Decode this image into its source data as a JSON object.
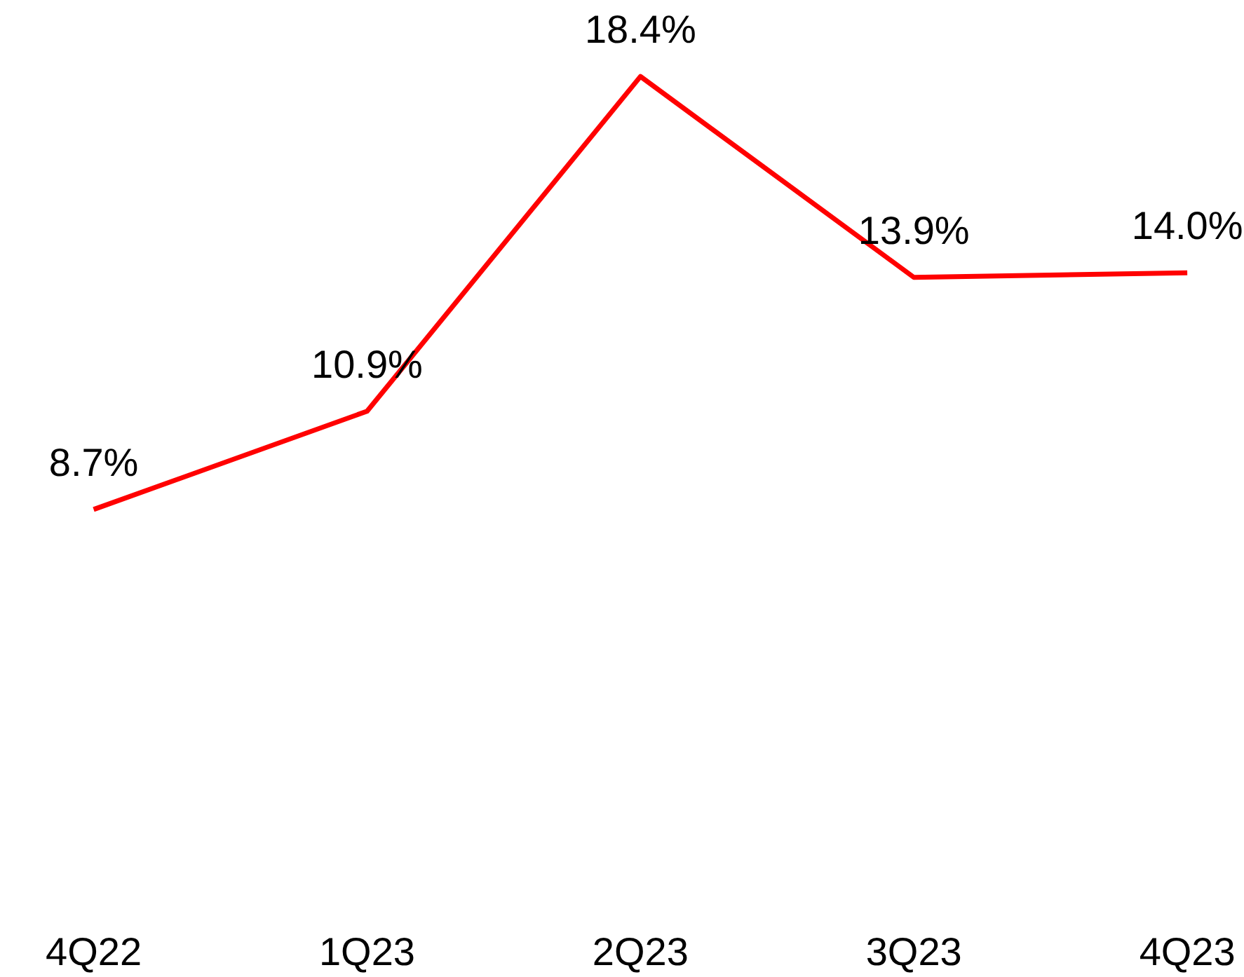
{
  "chart_data": {
    "type": "line",
    "categories": [
      "4Q22",
      "1Q23",
      "2Q23",
      "3Q23",
      "4Q23"
    ],
    "series": [
      {
        "color": "#ff0000",
        "values": [
          8.7,
          10.9,
          18.4,
          13.9,
          14.0
        ],
        "value_labels": [
          "8.7%",
          "10.9%",
          "18.4%",
          "13.9%",
          "14.0%"
        ]
      }
    ],
    "tick_labels": "x",
    "grid": false,
    "marker": "none",
    "line_style": "solid"
  }
}
